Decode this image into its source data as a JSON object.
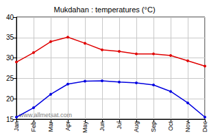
{
  "chart_data": {
    "type": "line",
    "title": "Mukdahan : temperatures (°C)",
    "annotation": "www.allmetsat.com",
    "categories": [
      "Jan",
      "Feb",
      "Mar",
      "Apr",
      "May",
      "Jun",
      "Jul",
      "Aug",
      "Sep",
      "Oct",
      "Nov",
      "Dec"
    ],
    "series": [
      {
        "color": "#e00000",
        "marker": "circle",
        "values": [
          29.0,
          31.3,
          34.0,
          35.1,
          33.6,
          32.0,
          31.6,
          31.0,
          31.0,
          30.6,
          29.3,
          28.0
        ]
      },
      {
        "color": "#0000e0",
        "marker": "circle",
        "values": [
          15.5,
          17.8,
          21.1,
          23.6,
          24.3,
          24.4,
          24.1,
          23.9,
          23.4,
          21.8,
          19.0,
          15.5
        ]
      }
    ],
    "ylim": [
      15,
      40
    ],
    "yticks": [
      15,
      20,
      25,
      30,
      35,
      40
    ],
    "grid": true
  }
}
